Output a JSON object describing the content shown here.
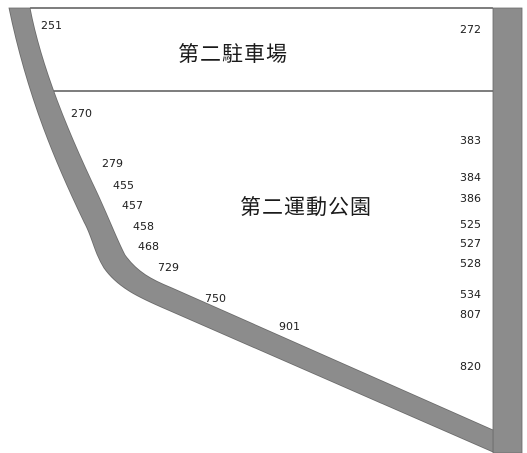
{
  "areas": {
    "parking_lot_2": "第二駐車場",
    "sports_park_2": "第二運動公園"
  },
  "lot_numbers": {
    "top_left": "251",
    "top_right": "272",
    "diag_1": "270",
    "diag_2": "279",
    "diag_3": "455",
    "diag_4": "457",
    "diag_5": "458",
    "diag_6": "468",
    "diag_7": "729",
    "diag_8": "750",
    "diag_9": "901",
    "right_1": "383",
    "right_2": "384",
    "right_3": "386",
    "right_4": "525",
    "right_5": "527",
    "right_6": "528",
    "right_7": "534",
    "right_8": "807",
    "right_9": "820"
  },
  "colors": {
    "road": "#8c8c8c",
    "road_edge": "#6a6a6a",
    "boundary": "#333333",
    "background": "#ffffff"
  }
}
